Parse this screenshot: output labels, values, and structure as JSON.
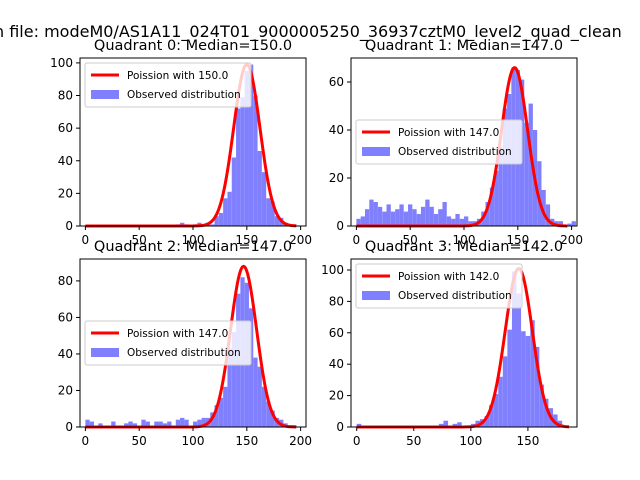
{
  "figure": {
    "suptitle": "n file: modeM0/AS1A11_024T01_9000005250_36937cztM0_level2_quad_clean"
  },
  "colors": {
    "curve": "#ff0000",
    "hist": "#8080ff"
  },
  "chart_data": [
    {
      "type": "bar",
      "title": "Quadrant 0: Median=150.0",
      "xlim": [
        -5,
        205
      ],
      "ylim": [
        0,
        103
      ],
      "xticks": [
        0,
        50,
        100,
        150,
        200
      ],
      "yticks": [
        0,
        20,
        40,
        60,
        80,
        100
      ],
      "bin_width": 4,
      "hist": [
        [
          84,
          1
        ],
        [
          88,
          2
        ],
        [
          92,
          1
        ],
        [
          100,
          1
        ],
        [
          104,
          2
        ],
        [
          108,
          1
        ],
        [
          112,
          2
        ],
        [
          116,
          1
        ],
        [
          120,
          6
        ],
        [
          124,
          8
        ],
        [
          128,
          17
        ],
        [
          132,
          21
        ],
        [
          136,
          42
        ],
        [
          140,
          72
        ],
        [
          144,
          79
        ],
        [
          148,
          95
        ],
        [
          152,
          99
        ],
        [
          156,
          80
        ],
        [
          160,
          46
        ],
        [
          164,
          33
        ],
        [
          168,
          17
        ],
        [
          172,
          15
        ],
        [
          176,
          6
        ],
        [
          180,
          5
        ],
        [
          184,
          2
        ],
        [
          188,
          1
        ],
        [
          192,
          1
        ]
      ],
      "poisson_mean": 150,
      "curve_range": [
        0,
        196
      ],
      "curve_peak": 99,
      "curve_sigma": 12.25,
      "legend": [
        "Poission with 150.0",
        "Observed distribution"
      ],
      "legend_placement": "upper-left"
    },
    {
      "type": "bar",
      "title": "Quadrant 1: Median=147.0",
      "xlim": [
        -5,
        205
      ],
      "ylim": [
        0,
        70
      ],
      "xticks": [
        0,
        50,
        100,
        150,
        200
      ],
      "yticks": [
        0,
        20,
        40,
        60
      ],
      "bin_width": 4,
      "hist": [
        [
          0,
          3
        ],
        [
          4,
          4
        ],
        [
          8,
          7
        ],
        [
          12,
          11
        ],
        [
          16,
          10
        ],
        [
          20,
          8
        ],
        [
          24,
          6
        ],
        [
          28,
          9
        ],
        [
          32,
          6
        ],
        [
          36,
          7
        ],
        [
          40,
          9
        ],
        [
          44,
          6
        ],
        [
          48,
          9
        ],
        [
          52,
          7
        ],
        [
          56,
          5
        ],
        [
          60,
          8
        ],
        [
          64,
          11
        ],
        [
          68,
          8
        ],
        [
          72,
          5
        ],
        [
          76,
          7
        ],
        [
          80,
          10
        ],
        [
          84,
          4
        ],
        [
          88,
          3
        ],
        [
          92,
          5
        ],
        [
          96,
          3
        ],
        [
          100,
          4
        ],
        [
          104,
          2
        ],
        [
          108,
          2
        ],
        [
          112,
          3
        ],
        [
          116,
          6
        ],
        [
          120,
          10
        ],
        [
          124,
          16
        ],
        [
          128,
          23
        ],
        [
          132,
          33
        ],
        [
          136,
          49
        ],
        [
          140,
          55
        ],
        [
          144,
          66
        ],
        [
          148,
          65
        ],
        [
          152,
          61
        ],
        [
          156,
          43
        ],
        [
          160,
          51
        ],
        [
          164,
          40
        ],
        [
          168,
          27
        ],
        [
          172,
          15
        ],
        [
          176,
          9
        ],
        [
          180,
          3
        ],
        [
          184,
          2
        ],
        [
          188,
          2
        ],
        [
          196,
          1
        ],
        [
          200,
          2
        ]
      ],
      "poisson_mean": 147,
      "curve_range": [
        0,
        196
      ],
      "curve_peak": 66,
      "curve_sigma": 12.1,
      "legend": [
        "Poission with 147.0",
        "Observed distribution"
      ],
      "legend_placement": "center-left"
    },
    {
      "type": "bar",
      "title": "Quadrant 2: Median=147.0",
      "xlim": [
        -5,
        205
      ],
      "ylim": [
        0,
        92
      ],
      "xticks": [
        0,
        50,
        100,
        150,
        200
      ],
      "yticks": [
        0,
        20,
        40,
        60,
        80
      ],
      "bin_width": 4,
      "hist": [
        [
          0,
          4
        ],
        [
          4,
          3
        ],
        [
          12,
          2
        ],
        [
          24,
          3
        ],
        [
          36,
          2
        ],
        [
          40,
          3
        ],
        [
          44,
          2
        ],
        [
          52,
          4
        ],
        [
          56,
          3
        ],
        [
          64,
          3
        ],
        [
          68,
          3
        ],
        [
          72,
          2
        ],
        [
          76,
          3
        ],
        [
          84,
          4
        ],
        [
          88,
          5
        ],
        [
          92,
          4
        ],
        [
          100,
          3
        ],
        [
          104,
          4
        ],
        [
          108,
          5
        ],
        [
          112,
          5
        ],
        [
          116,
          8
        ],
        [
          120,
          12
        ],
        [
          124,
          16
        ],
        [
          128,
          22
        ],
        [
          132,
          43
        ],
        [
          136,
          52
        ],
        [
          140,
          73
        ],
        [
          144,
          82
        ],
        [
          148,
          79
        ],
        [
          152,
          65
        ],
        [
          156,
          38
        ],
        [
          160,
          33
        ],
        [
          164,
          22
        ],
        [
          168,
          14
        ],
        [
          172,
          9
        ],
        [
          176,
          5
        ],
        [
          180,
          4
        ],
        [
          184,
          2
        ],
        [
          188,
          1
        ],
        [
          192,
          1
        ]
      ],
      "poisson_mean": 147,
      "curve_range": [
        0,
        196
      ],
      "curve_peak": 88,
      "curve_sigma": 12.1,
      "legend": [
        "Poission with 147.0",
        "Observed distribution"
      ],
      "legend_placement": "center-left"
    },
    {
      "type": "bar",
      "title": "Quadrant 3: Median=142.0",
      "xlim": [
        -5,
        193
      ],
      "ylim": [
        0,
        107
      ],
      "xticks": [
        0,
        50,
        100,
        150
      ],
      "yticks": [
        0,
        20,
        40,
        60,
        80,
        100
      ],
      "bin_width": 4,
      "hist": [
        [
          0,
          2
        ],
        [
          72,
          2
        ],
        [
          76,
          4
        ],
        [
          84,
          2
        ],
        [
          88,
          3
        ],
        [
          96,
          1
        ],
        [
          100,
          2
        ],
        [
          104,
          4
        ],
        [
          108,
          5
        ],
        [
          112,
          7
        ],
        [
          116,
          14
        ],
        [
          120,
          21
        ],
        [
          124,
          32
        ],
        [
          128,
          45
        ],
        [
          132,
          62
        ],
        [
          136,
          99
        ],
        [
          140,
          85
        ],
        [
          144,
          61
        ],
        [
          148,
          58
        ],
        [
          152,
          68
        ],
        [
          156,
          51
        ],
        [
          160,
          27
        ],
        [
          164,
          18
        ],
        [
          168,
          12
        ],
        [
          172,
          8
        ],
        [
          176,
          4
        ],
        [
          180,
          1
        ]
      ],
      "poisson_mean": 142,
      "curve_range": [
        0,
        186
      ],
      "curve_peak": 101,
      "curve_sigma": 11.9,
      "legend": [
        "Poission with 142.0",
        "Observed distribution"
      ],
      "legend_placement": "upper-left"
    }
  ]
}
